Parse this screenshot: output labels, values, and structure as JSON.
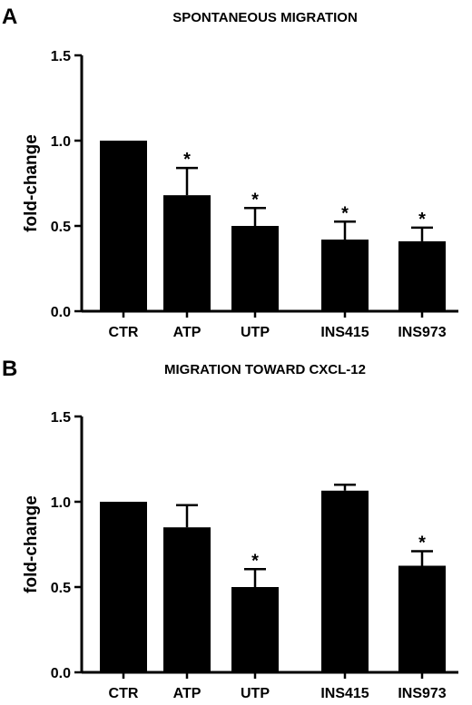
{
  "chart_data": [
    {
      "type": "bar",
      "panel": "A",
      "title": "SPONTANEOUS MIGRATION",
      "ylabel": "fold-change",
      "xlabel": "",
      "ylim": [
        0,
        1.5
      ],
      "yticks": [
        "0.0",
        "0.5",
        "1.0",
        "1.5"
      ],
      "categories": [
        "CTR",
        "ATP",
        "UTP",
        "INS415",
        "INS973"
      ],
      "values": [
        1.0,
        0.68,
        0.5,
        0.42,
        0.41
      ],
      "errors": [
        0.0,
        0.16,
        0.105,
        0.105,
        0.08
      ],
      "annotations": [
        "",
        "*",
        "*",
        "*",
        "*"
      ],
      "bar_color": "#000000"
    },
    {
      "type": "bar",
      "panel": "B",
      "title": "MIGRATION TOWARD CXCL-12",
      "ylabel": "fold-change",
      "xlabel": "",
      "ylim": [
        0,
        1.5
      ],
      "yticks": [
        "0.0",
        "0.5",
        "1.0",
        "1.5"
      ],
      "categories": [
        "CTR",
        "ATP",
        "UTP",
        "INS415",
        "INS973"
      ],
      "values": [
        1.0,
        0.85,
        0.5,
        1.065,
        0.625
      ],
      "errors": [
        0.0,
        0.13,
        0.105,
        0.035,
        0.085
      ],
      "annotations": [
        "",
        "",
        "*",
        "",
        "*"
      ],
      "bar_color": "#000000"
    }
  ]
}
